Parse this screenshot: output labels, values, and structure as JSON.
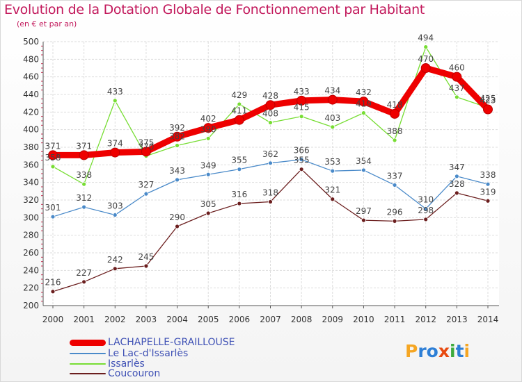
{
  "header": {
    "title": "Evolution de la Dotation Globale de Fonctionnement par Habitant",
    "subtitle": "(en € et par an)"
  },
  "logo": {
    "text": "Proxiti",
    "colors": [
      "#f5a623",
      "#2e7fd6",
      "#2e7fd6",
      "#e8490f",
      "#3daa3d",
      "#2e7fd6",
      "#f5a623"
    ]
  },
  "chart_data": {
    "type": "line",
    "title": "Evolution de la Dotation Globale de Fonctionnement par Habitant",
    "subtitle": "(en € et par an)",
    "xlabel": "",
    "ylabel": "",
    "ylim": [
      200,
      500
    ],
    "yticks": [
      "200",
      "220",
      "240",
      "260",
      "280",
      "300",
      "320",
      "340",
      "360",
      "380",
      "400",
      "420",
      "440",
      "460",
      "480",
      "500"
    ],
    "x": [
      "2000",
      "2001",
      "2002",
      "2003",
      "2004",
      "2005",
      "2006",
      "2007",
      "2008",
      "2009",
      "2010",
      "2011",
      "2012",
      "2013",
      "2014"
    ],
    "grid": true,
    "legend_position": "bottom-left",
    "series": [
      {
        "name": "LACHAPELLE-GRAILLOUSE",
        "color": "#ee0000",
        "values": [
          371,
          371,
          374,
          375,
          392,
          402,
          411,
          428,
          433,
          434,
          432,
          418,
          470,
          460,
          423
        ],
        "labels": [
          "371",
          "371",
          "374",
          "375",
          "392",
          "402",
          "411",
          "428",
          "433",
          "434",
          "432",
          "418",
          "470",
          "460",
          "423"
        ]
      },
      {
        "name": "Le Lac-d'Issarlès",
        "color": "#4a8ac9",
        "values": [
          301,
          312,
          303,
          327,
          343,
          349,
          355,
          362,
          366,
          353,
          354,
          337,
          310,
          347,
          338
        ],
        "labels": [
          "301",
          "312",
          "303",
          "327",
          "343",
          "349",
          "355",
          "362",
          "366",
          "353",
          "354",
          "337",
          "310",
          "347",
          "338"
        ]
      },
      {
        "name": "Issarlès",
        "color": "#77dd33",
        "values": [
          358,
          338,
          433,
          370,
          382,
          390,
          429,
          408,
          415,
          403,
          419,
          388,
          494,
          437,
          425
        ],
        "labels": [
          "358",
          "338",
          "433",
          "370",
          "382",
          "390",
          "429",
          "408",
          "415",
          "403",
          "419",
          "388",
          "494",
          "437",
          "425"
        ]
      },
      {
        "name": "Coucouron",
        "color": "#6b1e1e",
        "values": [
          216,
          227,
          242,
          245,
          290,
          305,
          316,
          318,
          355,
          321,
          297,
          296,
          298,
          328,
          319
        ],
        "labels": [
          "216",
          "227",
          "242",
          "245",
          "290",
          "305",
          "316",
          "318",
          "355",
          "321",
          "297",
          "296",
          "298",
          "328",
          "319"
        ]
      }
    ]
  }
}
